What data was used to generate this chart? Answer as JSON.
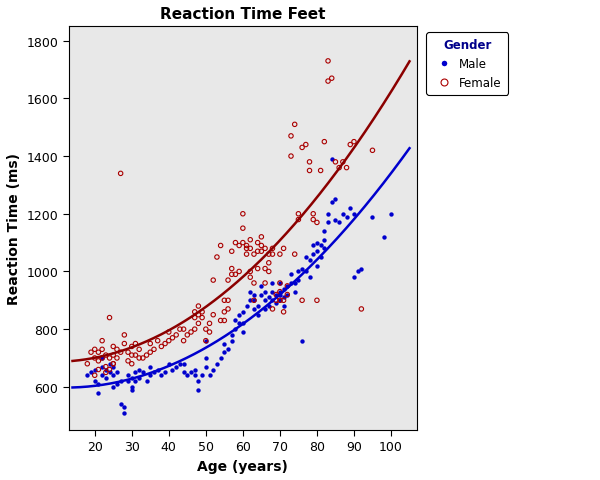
{
  "title": "Reaction Time Feet",
  "xlabel": "Age (years)",
  "ylabel": "Reaction Time (ms)",
  "xlim": [
    13,
    107
  ],
  "ylim": [
    450,
    1850
  ],
  "xticks": [
    20,
    30,
    40,
    50,
    60,
    70,
    80,
    90,
    100
  ],
  "yticks": [
    600,
    800,
    1000,
    1200,
    1400,
    1600,
    1800
  ],
  "plot_bg_color": "#e8e8e8",
  "fig_bg_color": "#ffffff",
  "male_color": "#0000cd",
  "female_color": "#aa0000",
  "male_scatter": [
    [
      18,
      640
    ],
    [
      19,
      650
    ],
    [
      20,
      620
    ],
    [
      20,
      660
    ],
    [
      21,
      580
    ],
    [
      21,
      610
    ],
    [
      22,
      640
    ],
    [
      22,
      670
    ],
    [
      22,
      700
    ],
    [
      23,
      630
    ],
    [
      23,
      660
    ],
    [
      24,
      650
    ],
    [
      24,
      680
    ],
    [
      25,
      600
    ],
    [
      25,
      640
    ],
    [
      25,
      670
    ],
    [
      26,
      610
    ],
    [
      26,
      650
    ],
    [
      27,
      620
    ],
    [
      27,
      540
    ],
    [
      28,
      530
    ],
    [
      28,
      510
    ],
    [
      29,
      620
    ],
    [
      29,
      640
    ],
    [
      30,
      600
    ],
    [
      30,
      630
    ],
    [
      30,
      590
    ],
    [
      31,
      620
    ],
    [
      31,
      650
    ],
    [
      32,
      630
    ],
    [
      32,
      660
    ],
    [
      33,
      650
    ],
    [
      34,
      620
    ],
    [
      35,
      640
    ],
    [
      35,
      670
    ],
    [
      36,
      650
    ],
    [
      37,
      660
    ],
    [
      38,
      640
    ],
    [
      39,
      650
    ],
    [
      40,
      680
    ],
    [
      41,
      660
    ],
    [
      42,
      670
    ],
    [
      43,
      680
    ],
    [
      44,
      650
    ],
    [
      44,
      680
    ],
    [
      45,
      640
    ],
    [
      46,
      650
    ],
    [
      47,
      640
    ],
    [
      47,
      660
    ],
    [
      48,
      590
    ],
    [
      48,
      620
    ],
    [
      49,
      640
    ],
    [
      50,
      670
    ],
    [
      50,
      700
    ],
    [
      50,
      760
    ],
    [
      51,
      640
    ],
    [
      52,
      660
    ],
    [
      53,
      680
    ],
    [
      54,
      700
    ],
    [
      55,
      720
    ],
    [
      55,
      750
    ],
    [
      56,
      730
    ],
    [
      57,
      760
    ],
    [
      57,
      780
    ],
    [
      58,
      800
    ],
    [
      58,
      830
    ],
    [
      59,
      820
    ],
    [
      59,
      850
    ],
    [
      60,
      790
    ],
    [
      60,
      820
    ],
    [
      60,
      860
    ],
    [
      61,
      880
    ],
    [
      62,
      900
    ],
    [
      62,
      930
    ],
    [
      63,
      870
    ],
    [
      63,
      900
    ],
    [
      63,
      920
    ],
    [
      64,
      850
    ],
    [
      64,
      880
    ],
    [
      65,
      920
    ],
    [
      65,
      950
    ],
    [
      66,
      870
    ],
    [
      66,
      900
    ],
    [
      66,
      930
    ],
    [
      67,
      880
    ],
    [
      67,
      910
    ],
    [
      68,
      900
    ],
    [
      68,
      930
    ],
    [
      68,
      960
    ],
    [
      69,
      890
    ],
    [
      69,
      920
    ],
    [
      70,
      930
    ],
    [
      70,
      960
    ],
    [
      70,
      900
    ],
    [
      70,
      920
    ],
    [
      71,
      880
    ],
    [
      71,
      910
    ],
    [
      71,
      940
    ],
    [
      72,
      920
    ],
    [
      72,
      950
    ],
    [
      73,
      960
    ],
    [
      73,
      990
    ],
    [
      74,
      930
    ],
    [
      74,
      960
    ],
    [
      75,
      1000
    ],
    [
      75,
      970
    ],
    [
      76,
      760
    ],
    [
      76,
      1010
    ],
    [
      77,
      1000
    ],
    [
      77,
      1050
    ],
    [
      78,
      1040
    ],
    [
      78,
      980
    ],
    [
      79,
      1060
    ],
    [
      79,
      1090
    ],
    [
      80,
      1070
    ],
    [
      80,
      1100
    ],
    [
      80,
      1020
    ],
    [
      81,
      1050
    ],
    [
      81,
      1090
    ],
    [
      82,
      1080
    ],
    [
      82,
      1110
    ],
    [
      82,
      1140
    ],
    [
      83,
      1170
    ],
    [
      83,
      1200
    ],
    [
      84,
      1390
    ],
    [
      84,
      1240
    ],
    [
      85,
      1180
    ],
    [
      85,
      1250
    ],
    [
      86,
      1170
    ],
    [
      87,
      1200
    ],
    [
      88,
      1190
    ],
    [
      89,
      1220
    ],
    [
      90,
      1200
    ],
    [
      90,
      980
    ],
    [
      91,
      1000
    ],
    [
      92,
      1010
    ],
    [
      95,
      1190
    ],
    [
      98,
      1120
    ],
    [
      100,
      1200
    ]
  ],
  "female_scatter": [
    [
      18,
      680
    ],
    [
      19,
      720
    ],
    [
      20,
      640
    ],
    [
      20,
      700
    ],
    [
      20,
      730
    ],
    [
      21,
      660
    ],
    [
      21,
      690
    ],
    [
      21,
      720
    ],
    [
      22,
      700
    ],
    [
      22,
      730
    ],
    [
      22,
      760
    ],
    [
      23,
      710
    ],
    [
      23,
      670
    ],
    [
      23,
      650
    ],
    [
      24,
      660
    ],
    [
      24,
      700
    ],
    [
      24,
      840
    ],
    [
      25,
      680
    ],
    [
      25,
      710
    ],
    [
      25,
      740
    ],
    [
      25,
      680
    ],
    [
      26,
      700
    ],
    [
      26,
      730
    ],
    [
      27,
      1340
    ],
    [
      27,
      720
    ],
    [
      28,
      750
    ],
    [
      28,
      780
    ],
    [
      29,
      690
    ],
    [
      29,
      720
    ],
    [
      30,
      710
    ],
    [
      30,
      740
    ],
    [
      30,
      680
    ],
    [
      31,
      710
    ],
    [
      31,
      750
    ],
    [
      32,
      700
    ],
    [
      32,
      730
    ],
    [
      33,
      700
    ],
    [
      34,
      710
    ],
    [
      35,
      720
    ],
    [
      35,
      750
    ],
    [
      36,
      730
    ],
    [
      37,
      760
    ],
    [
      38,
      740
    ],
    [
      39,
      750
    ],
    [
      40,
      760
    ],
    [
      40,
      790
    ],
    [
      41,
      770
    ],
    [
      42,
      780
    ],
    [
      43,
      800
    ],
    [
      44,
      760
    ],
    [
      44,
      800
    ],
    [
      45,
      780
    ],
    [
      46,
      790
    ],
    [
      47,
      800
    ],
    [
      47,
      840
    ],
    [
      47,
      860
    ],
    [
      48,
      820
    ],
    [
      48,
      850
    ],
    [
      48,
      880
    ],
    [
      49,
      840
    ],
    [
      49,
      860
    ],
    [
      50,
      760
    ],
    [
      50,
      800
    ],
    [
      51,
      790
    ],
    [
      51,
      820
    ],
    [
      52,
      850
    ],
    [
      52,
      970
    ],
    [
      53,
      1050
    ],
    [
      54,
      1090
    ],
    [
      54,
      830
    ],
    [
      55,
      860
    ],
    [
      55,
      900
    ],
    [
      55,
      830
    ],
    [
      56,
      870
    ],
    [
      56,
      900
    ],
    [
      56,
      970
    ],
    [
      57,
      990
    ],
    [
      57,
      1010
    ],
    [
      57,
      1070
    ],
    [
      58,
      990
    ],
    [
      58,
      1100
    ],
    [
      59,
      1000
    ],
    [
      59,
      1090
    ],
    [
      60,
      1100
    ],
    [
      60,
      1150
    ],
    [
      60,
      1200
    ],
    [
      61,
      1060
    ],
    [
      61,
      1090
    ],
    [
      61,
      1080
    ],
    [
      62,
      1080
    ],
    [
      62,
      1110
    ],
    [
      62,
      980
    ],
    [
      62,
      1000
    ],
    [
      63,
      900
    ],
    [
      63,
      1060
    ],
    [
      63,
      960
    ],
    [
      64,
      1070
    ],
    [
      64,
      1100
    ],
    [
      64,
      1010
    ],
    [
      65,
      1090
    ],
    [
      65,
      1120
    ],
    [
      65,
      1070
    ],
    [
      66,
      960
    ],
    [
      66,
      1010
    ],
    [
      66,
      1080
    ],
    [
      67,
      1060
    ],
    [
      67,
      1030
    ],
    [
      67,
      1000
    ],
    [
      68,
      1060
    ],
    [
      68,
      1080
    ],
    [
      68,
      870
    ],
    [
      69,
      900
    ],
    [
      69,
      920
    ],
    [
      70,
      900
    ],
    [
      70,
      930
    ],
    [
      70,
      960
    ],
    [
      70,
      1060
    ],
    [
      71,
      1080
    ],
    [
      71,
      900
    ],
    [
      71,
      860
    ],
    [
      72,
      920
    ],
    [
      72,
      950
    ],
    [
      73,
      1400
    ],
    [
      73,
      1470
    ],
    [
      74,
      1510
    ],
    [
      74,
      1060
    ],
    [
      75,
      1180
    ],
    [
      75,
      1200
    ],
    [
      76,
      1430
    ],
    [
      76,
      900
    ],
    [
      77,
      1440
    ],
    [
      78,
      1380
    ],
    [
      78,
      1350
    ],
    [
      79,
      1200
    ],
    [
      79,
      1180
    ],
    [
      80,
      1170
    ],
    [
      80,
      900
    ],
    [
      81,
      1350
    ],
    [
      82,
      1450
    ],
    [
      83,
      1660
    ],
    [
      83,
      1730
    ],
    [
      84,
      1670
    ],
    [
      85,
      1380
    ],
    [
      86,
      1360
    ],
    [
      87,
      1380
    ],
    [
      88,
      1360
    ],
    [
      89,
      1440
    ],
    [
      90,
      1450
    ],
    [
      92,
      870
    ],
    [
      95,
      1420
    ]
  ],
  "male_curve_color": "#0000cd",
  "female_curve_color": "#8b0000",
  "legend_title": "Gender",
  "legend_title_color": "#00008b",
  "figsize": [
    6.0,
    4.81
  ],
  "dpi": 100
}
